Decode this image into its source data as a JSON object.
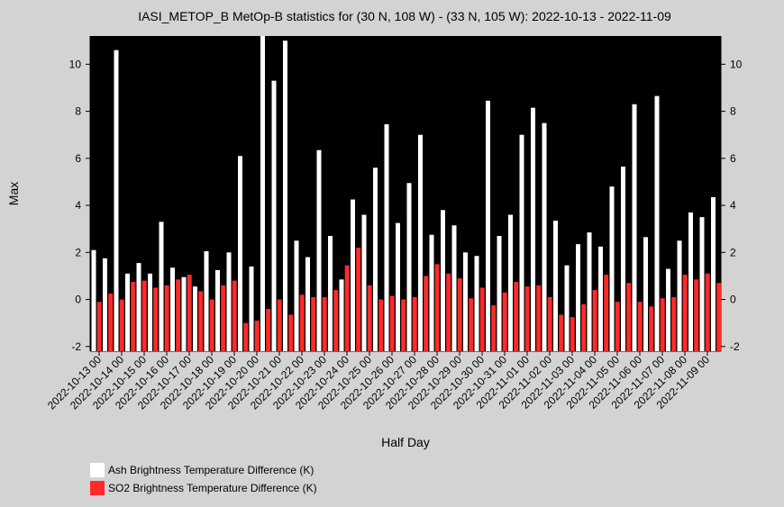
{
  "chart_data": {
    "type": "bar",
    "title": "IASI_METOP_B MetOp-B statistics for (30 N, 108 W) - (33 N, 105 W): 2022-10-13 - 2022-11-09",
    "xlabel": "Half Day",
    "ylabel": "Max",
    "ylim": [
      -2.2,
      11.2
    ],
    "yticks": [
      -2,
      0,
      2,
      4,
      6,
      8,
      10
    ],
    "grid": false,
    "legend_position": "bottom-left",
    "x_tick_labels": [
      "2022-10-13 00",
      "2022-10-14 00",
      "2022-10-15 00",
      "2022-10-16 00",
      "2022-10-17 00",
      "2022-10-18 00",
      "2022-10-19 00",
      "2022-10-20 00",
      "2022-10-21 00",
      "2022-10-22 00",
      "2022-10-23 00",
      "2022-10-24 00",
      "2022-10-25 00",
      "2022-10-26 00",
      "2022-10-27 00",
      "2022-10-28 00",
      "2022-10-29 00",
      "2022-10-30 00",
      "2022-10-31 00",
      "2022-11-01 00",
      "2022-11-02 00",
      "2022-11-03 00",
      "2022-11-04 00",
      "2022-11-05 00",
      "2022-11-06 00",
      "2022-11-07 00",
      "2022-11-08 00",
      "2022-11-09 00"
    ],
    "series": [
      {
        "name": "Ash Brightness Temperature Difference (K)",
        "color": "#ffffff",
        "values": [
          2.1,
          1.75,
          10.6,
          1.1,
          1.55,
          1.1,
          3.3,
          1.35,
          0.95,
          0.55,
          2.05,
          1.25,
          2.0,
          6.1,
          1.4,
          11.2,
          9.3,
          11.0,
          2.5,
          1.8,
          6.35,
          2.7,
          0.85,
          4.25,
          3.6,
          5.6,
          7.45,
          3.25,
          4.95,
          7.0,
          2.75,
          3.8,
          3.15,
          2.0,
          1.85,
          8.45,
          2.7,
          3.6,
          7.0,
          8.15,
          7.5,
          3.35,
          1.45,
          2.35,
          2.85,
          2.25,
          4.8,
          5.65,
          8.3,
          2.65,
          8.65,
          1.3,
          2.5,
          3.7,
          3.5,
          4.35
        ]
      },
      {
        "name": "SO2 Brightness Temperature Difference (K)",
        "color": "#ff2a2a",
        "values": [
          -0.1,
          0.25,
          0.0,
          0.75,
          0.8,
          0.5,
          0.6,
          0.85,
          1.05,
          0.35,
          0.0,
          0.6,
          0.8,
          -1.0,
          -0.9,
          -0.4,
          0.0,
          -0.65,
          0.2,
          0.1,
          0.1,
          0.4,
          1.45,
          2.2,
          0.6,
          0.0,
          0.15,
          0.0,
          0.1,
          1.0,
          1.5,
          1.1,
          0.9,
          0.05,
          0.5,
          -0.25,
          0.3,
          0.75,
          0.55,
          0.6,
          0.1,
          -0.65,
          -0.75,
          -0.2,
          0.4,
          1.05,
          -0.1,
          0.7,
          -0.1,
          -0.3,
          0.05,
          0.1,
          1.05,
          0.85,
          1.1,
          0.7
        ]
      }
    ]
  }
}
